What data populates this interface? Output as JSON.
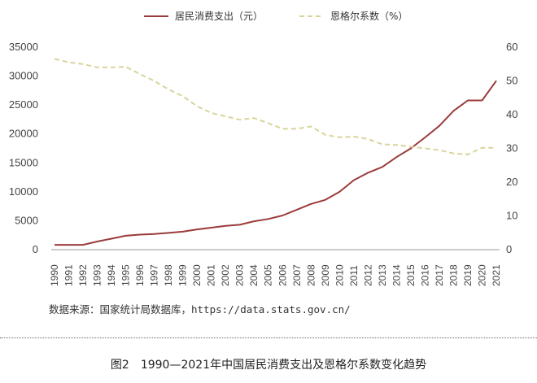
{
  "chart_data": {
    "type": "line",
    "categories": [
      "1990",
      "1991",
      "1992",
      "1993",
      "1994",
      "1995",
      "1996",
      "1997",
      "1998",
      "1999",
      "2000",
      "2001",
      "2002",
      "2003",
      "2004",
      "2005",
      "2006",
      "2007",
      "2008",
      "2009",
      "2010",
      "2011",
      "2012",
      "2013",
      "2014",
      "2015",
      "2016",
      "2017",
      "2018",
      "2019",
      "2020",
      "2021"
    ],
    "series": [
      {
        "name": "居民消费支出（元）",
        "axis": "left",
        "color": "#9b3b3b",
        "style": "solid",
        "values": [
          830,
          830,
          830,
          1400,
          1900,
          2400,
          2600,
          2700,
          2900,
          3100,
          3500,
          3800,
          4100,
          4300,
          4900,
          5300,
          5900,
          6900,
          7900,
          8600,
          10000,
          12000,
          13300,
          14300,
          16000,
          17500,
          19400,
          21400,
          24000,
          25800,
          25800,
          29200
        ]
      },
      {
        "name": "恩格尔系数（%）",
        "axis": "right",
        "color": "#d8d49a",
        "style": "dashed",
        "values": [
          56.5,
          55.5,
          55.0,
          54.0,
          54.0,
          54.2,
          52.0,
          50.0,
          47.5,
          45.5,
          42.5,
          40.5,
          39.5,
          38.5,
          39.0,
          37.5,
          35.8,
          35.8,
          36.5,
          34.0,
          33.3,
          33.5,
          32.8,
          31.2,
          31.0,
          30.5,
          30.0,
          29.5,
          28.5,
          28.2,
          30.2,
          30.2
        ]
      }
    ],
    "y_left": {
      "min": 0,
      "max": 35000,
      "ticks": [
        0,
        5000,
        10000,
        15000,
        20000,
        25000,
        30000,
        35000
      ]
    },
    "y_right": {
      "min": 0,
      "max": 60,
      "ticks": [
        0,
        10,
        20,
        30,
        40,
        50,
        60
      ]
    },
    "grid": false,
    "legend_position": "top"
  },
  "source_text": "数据来源：国家统计局数据库，https://data.stats.gov.cn/",
  "caption": "图2　1990—2021年中国居民消费支出及恩格尔系数变化趋势"
}
